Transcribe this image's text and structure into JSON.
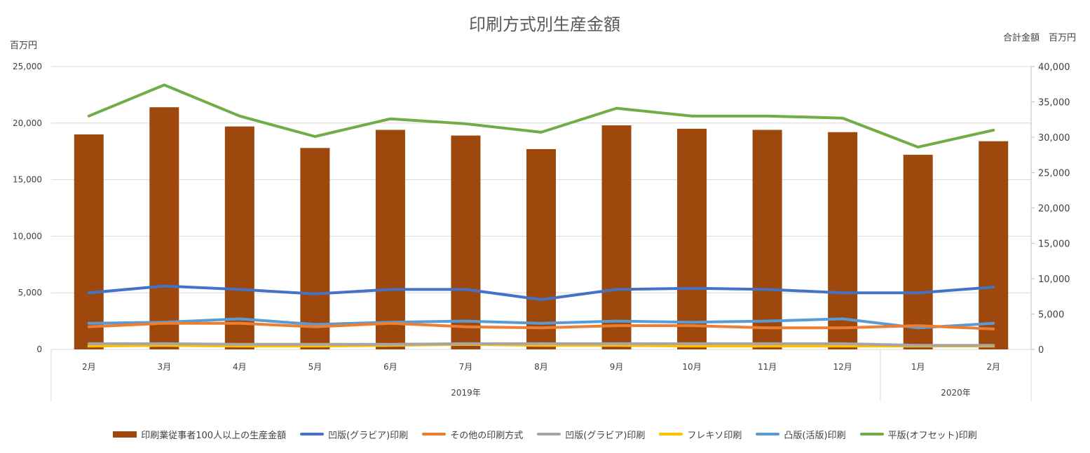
{
  "chart_data": {
    "type": "bar",
    "title": "印刷方式別生産金額",
    "left_axis_unit": "百万円",
    "right_axis_unit": "合計金額　百万円",
    "categories": [
      "2月",
      "3月",
      "4月",
      "5月",
      "6月",
      "7月",
      "8月",
      "9月",
      "10月",
      "11月",
      "12月",
      "1月",
      "2月"
    ],
    "year_groups": [
      {
        "label": "2019年",
        "count": 11
      },
      {
        "label": "2020年",
        "count": 2
      }
    ],
    "y_left": {
      "min": 0,
      "max": 25000,
      "ticks": [
        "0",
        "5,000",
        "10,000",
        "15,000",
        "20,000",
        "25,000"
      ],
      "tick_values": [
        0,
        5000,
        10000,
        15000,
        20000,
        25000
      ]
    },
    "y_right": {
      "min": 0,
      "max": 40000,
      "ticks": [
        "0",
        "5,000",
        "10,000",
        "15,000",
        "20,000",
        "25,000",
        "30,000",
        "35,000",
        "40,000"
      ],
      "tick_values": [
        0,
        5000,
        10000,
        15000,
        20000,
        25000,
        30000,
        35000,
        40000
      ]
    },
    "grid": true,
    "legend_position": "bottom",
    "series": [
      {
        "name": "印刷業従事者100人以上の生産金額",
        "kind": "bar",
        "axis": "left",
        "color": "#9E480E",
        "values": [
          19000,
          21400,
          19700,
          17800,
          19400,
          18900,
          17700,
          19800,
          19500,
          19400,
          19200,
          17200,
          18400
        ]
      },
      {
        "name": "凹版(グラビア)印刷",
        "kind": "line",
        "axis": "left",
        "color": "#4472C4",
        "values": [
          5000,
          5600,
          5300,
          4900,
          5300,
          5300,
          4400,
          5300,
          5400,
          5300,
          5000,
          5000,
          5500
        ]
      },
      {
        "name": "その他の印刷方式",
        "kind": "line",
        "axis": "left",
        "color": "#ED7D31",
        "values": [
          2000,
          2300,
          2300,
          2000,
          2300,
          2000,
          1900,
          2100,
          2100,
          1900,
          1900,
          2100,
          1800
        ]
      },
      {
        "name": "凹版(グラビア)印刷",
        "kind": "line",
        "axis": "left",
        "color": "#A5A5A5",
        "values": [
          500,
          500,
          450,
          450,
          450,
          500,
          500,
          500,
          500,
          500,
          500,
          350,
          350
        ]
      },
      {
        "name": "フレキソ印刷",
        "kind": "line",
        "axis": "left",
        "color": "#FFC000",
        "values": [
          300,
          350,
          300,
          300,
          350,
          450,
          350,
          350,
          300,
          300,
          300,
          300,
          300
        ]
      },
      {
        "name": "凸版(活版)印刷",
        "kind": "line",
        "axis": "left",
        "color": "#5B9BD5",
        "values": [
          2300,
          2400,
          2700,
          2200,
          2400,
          2500,
          2300,
          2500,
          2400,
          2500,
          2700,
          1900,
          2300
        ]
      },
      {
        "name": "平版(オフセット)印刷",
        "kind": "line",
        "axis": "right",
        "color": "#70AD47",
        "values": [
          33000,
          37400,
          33000,
          30100,
          32600,
          31900,
          30700,
          34100,
          33000,
          33000,
          32700,
          28600,
          31000
        ]
      }
    ]
  }
}
